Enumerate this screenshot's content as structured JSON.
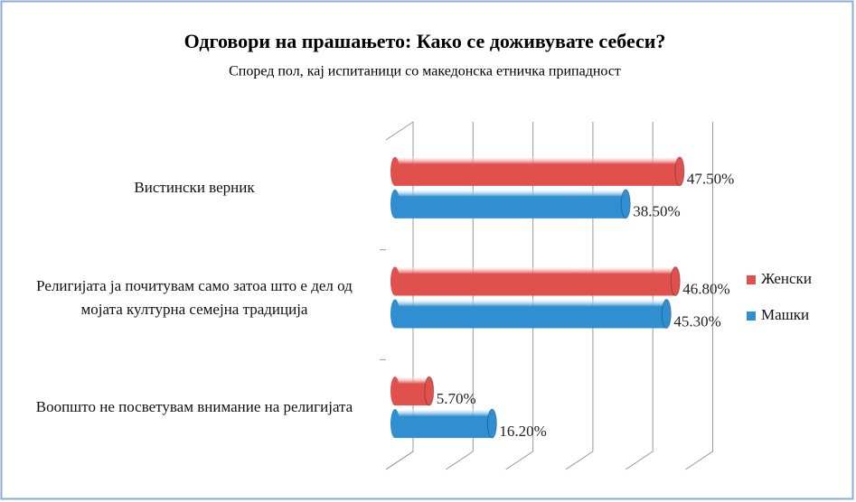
{
  "chart_data": {
    "type": "bar",
    "title": "Одговори на прашањето: Како се доживувате себеси?",
    "subtitle": "Според пол, кај испитаници со македонска етничка припадност",
    "categories": [
      "Вистински верник",
      "Религијата ја почитувам само затоа што е дел од мојата културна  семејна традиција",
      "Воопшто не посветувам внимание на религијата"
    ],
    "series": [
      {
        "name": "Женски",
        "color": "#e0504d",
        "values": [
          47.5,
          46.8,
          5.7
        ],
        "value_labels": [
          "47.50%",
          "46.80%",
          "5.70%"
        ]
      },
      {
        "name": "Машки",
        "color": "#2f8fd0",
        "values": [
          38.5,
          45.3,
          16.2
        ],
        "value_labels": [
          "38.50%",
          "45.30%",
          "16.20%"
        ]
      }
    ],
    "xlim": [
      0,
      50
    ],
    "xticks": [
      0,
      10,
      20,
      30,
      40,
      50
    ],
    "grid": true,
    "legend": "right"
  }
}
